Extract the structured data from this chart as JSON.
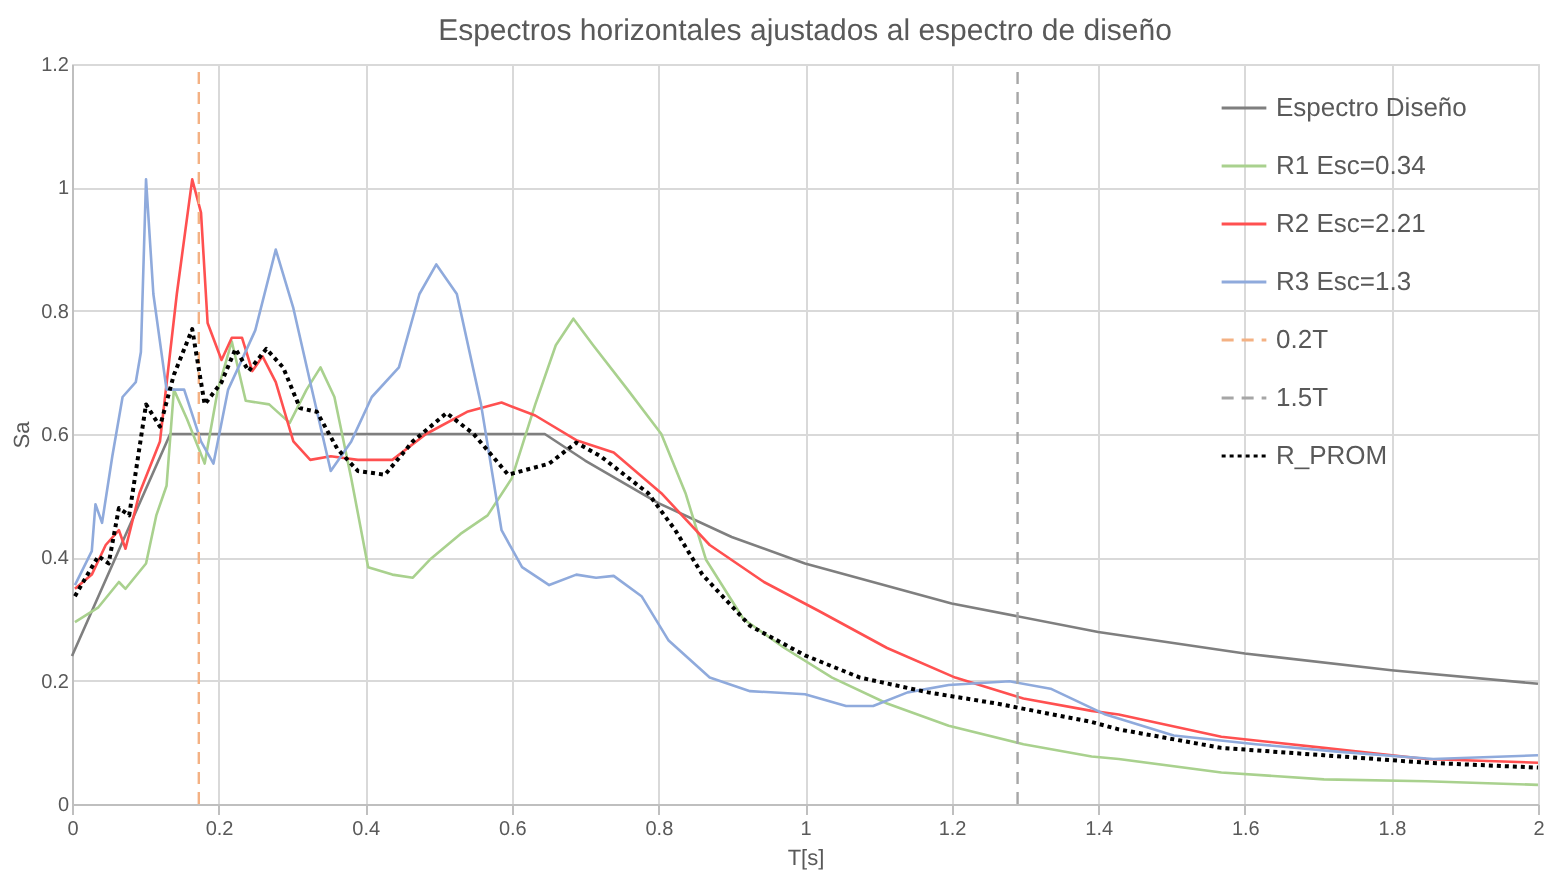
{
  "chart_data": {
    "type": "line",
    "title": "Espectros horizontales ajustados al espectro de diseño",
    "xlabel": "T[s]",
    "ylabel": "Sa",
    "xlim": [
      0,
      2
    ],
    "xticks": [
      0,
      0.2,
      0.4,
      0.6,
      0.8,
      1,
      1.2,
      1.4,
      1.6,
      1.8,
      2
    ],
    "ylim": [
      0,
      1.2
    ],
    "yticks": [
      0,
      0.2,
      0.4,
      0.6,
      0.8,
      1,
      1.2
    ],
    "grid": true,
    "legend": "right",
    "marker": "none",
    "series": [
      {
        "name": "Espectro Diseño",
        "color": "#7f7f7f",
        "line_style": "solid",
        "x": [
          0,
          0.134,
          0.645,
          0.7,
          0.8,
          0.9,
          1.0,
          1.2,
          1.4,
          1.6,
          1.8,
          2.0
        ],
        "values": [
          0.24,
          0.6,
          0.6,
          0.557,
          0.488,
          0.433,
          0.39,
          0.325,
          0.279,
          0.244,
          0.217,
          0.195
        ]
      },
      {
        "name": "R1 Esc=0.34",
        "color": "#a9d18e",
        "line_style": "solid",
        "x": [
          0.004,
          0.036,
          0.064,
          0.073,
          0.101,
          0.115,
          0.129,
          0.139,
          0.157,
          0.181,
          0.199,
          0.218,
          0.237,
          0.269,
          0.297,
          0.32,
          0.339,
          0.358,
          0.381,
          0.404,
          0.437,
          0.465,
          0.488,
          0.53,
          0.567,
          0.6,
          0.632,
          0.66,
          0.684,
          0.711,
          0.758,
          0.804,
          0.837,
          0.865,
          0.916,
          0.972,
          1.037,
          1.112,
          1.196,
          1.298,
          1.391,
          1.428,
          1.568,
          1.708,
          1.847,
          2.0
        ],
        "values": [
          0.295,
          0.319,
          0.36,
          0.349,
          0.39,
          0.468,
          0.516,
          0.672,
          0.624,
          0.552,
          0.672,
          0.75,
          0.654,
          0.648,
          0.618,
          0.672,
          0.708,
          0.66,
          0.528,
          0.384,
          0.372,
          0.367,
          0.396,
          0.438,
          0.468,
          0.528,
          0.648,
          0.744,
          0.787,
          0.744,
          0.672,
          0.6,
          0.504,
          0.396,
          0.3,
          0.253,
          0.205,
          0.163,
          0.127,
          0.097,
          0.077,
          0.073,
          0.051,
          0.04,
          0.037,
          0.031
        ]
      },
      {
        "name": "R2 Esc=2.21",
        "color": "#ff5050",
        "line_style": "solid",
        "x": [
          0.004,
          0.027,
          0.046,
          0.064,
          0.073,
          0.092,
          0.12,
          0.143,
          0.164,
          0.176,
          0.185,
          0.204,
          0.218,
          0.232,
          0.246,
          0.26,
          0.278,
          0.302,
          0.325,
          0.353,
          0.39,
          0.437,
          0.483,
          0.539,
          0.586,
          0.632,
          0.688,
          0.739,
          0.804,
          0.87,
          0.944,
          1.019,
          1.112,
          1.205,
          1.298,
          1.391,
          1.428,
          1.568,
          1.708,
          1.847,
          2.0
        ],
        "values": [
          0.349,
          0.372,
          0.42,
          0.444,
          0.414,
          0.504,
          0.588,
          0.827,
          1.013,
          0.959,
          0.78,
          0.72,
          0.756,
          0.756,
          0.702,
          0.726,
          0.684,
          0.588,
          0.558,
          0.564,
          0.558,
          0.558,
          0.6,
          0.636,
          0.651,
          0.63,
          0.59,
          0.57,
          0.504,
          0.42,
          0.36,
          0.313,
          0.253,
          0.205,
          0.171,
          0.151,
          0.145,
          0.109,
          0.091,
          0.073,
          0.067
        ]
      },
      {
        "name": "R3 Esc=1.3",
        "color": "#8faadc",
        "line_style": "solid",
        "x": [
          0.004,
          0.027,
          0.032,
          0.041,
          0.055,
          0.069,
          0.087,
          0.094,
          0.101,
          0.111,
          0.129,
          0.153,
          0.176,
          0.193,
          0.213,
          0.227,
          0.25,
          0.278,
          0.302,
          0.325,
          0.353,
          0.381,
          0.409,
          0.446,
          0.474,
          0.497,
          0.525,
          0.558,
          0.586,
          0.614,
          0.651,
          0.688,
          0.715,
          0.739,
          0.777,
          0.814,
          0.87,
          0.925,
          1.0,
          1.056,
          1.093,
          1.14,
          1.196,
          1.279,
          1.335,
          1.41,
          1.503,
          1.615,
          1.726,
          1.857,
          2.0
        ],
        "values": [
          0.355,
          0.41,
          0.486,
          0.456,
          0.564,
          0.66,
          0.684,
          0.733,
          1.013,
          0.827,
          0.672,
          0.672,
          0.588,
          0.552,
          0.672,
          0.708,
          0.768,
          0.899,
          0.804,
          0.684,
          0.54,
          0.588,
          0.66,
          0.708,
          0.827,
          0.875,
          0.827,
          0.648,
          0.444,
          0.384,
          0.355,
          0.372,
          0.367,
          0.37,
          0.337,
          0.265,
          0.205,
          0.183,
          0.178,
          0.159,
          0.159,
          0.181,
          0.193,
          0.199,
          0.187,
          0.145,
          0.111,
          0.097,
          0.085,
          0.073,
          0.079
        ]
      },
      {
        "name": "0.2T",
        "color": "#f4b183",
        "line_style": "dashed",
        "x": [
          0.173,
          0.173
        ],
        "values": [
          0,
          1.2
        ]
      },
      {
        "name": "1.5T",
        "color": "#a6a6a6",
        "line_style": "dashed",
        "x": [
          1.29,
          1.29
        ],
        "values": [
          0,
          1.2
        ]
      },
      {
        "name": "R_PROM",
        "color": "#000000",
        "line_style": "dotted",
        "x": [
          0.004,
          0.027,
          0.036,
          0.05,
          0.064,
          0.078,
          0.101,
          0.12,
          0.139,
          0.164,
          0.181,
          0.204,
          0.223,
          0.241,
          0.265,
          0.288,
          0.311,
          0.334,
          0.362,
          0.39,
          0.427,
          0.465,
          0.511,
          0.548,
          0.595,
          0.651,
          0.688,
          0.721,
          0.786,
          0.823,
          0.86,
          0.925,
          1.0,
          1.075,
          1.168,
          1.261,
          1.391,
          1.428,
          1.568,
          1.708,
          1.847,
          2.0
        ],
        "values": [
          0.337,
          0.384,
          0.402,
          0.39,
          0.48,
          0.468,
          0.648,
          0.612,
          0.696,
          0.77,
          0.648,
          0.684,
          0.738,
          0.702,
          0.738,
          0.708,
          0.642,
          0.636,
          0.576,
          0.54,
          0.534,
          0.588,
          0.634,
          0.6,
          0.534,
          0.552,
          0.586,
          0.564,
          0.504,
          0.444,
          0.372,
          0.289,
          0.241,
          0.205,
          0.181,
          0.163,
          0.133,
          0.121,
          0.091,
          0.079,
          0.067,
          0.059
        ]
      }
    ]
  }
}
